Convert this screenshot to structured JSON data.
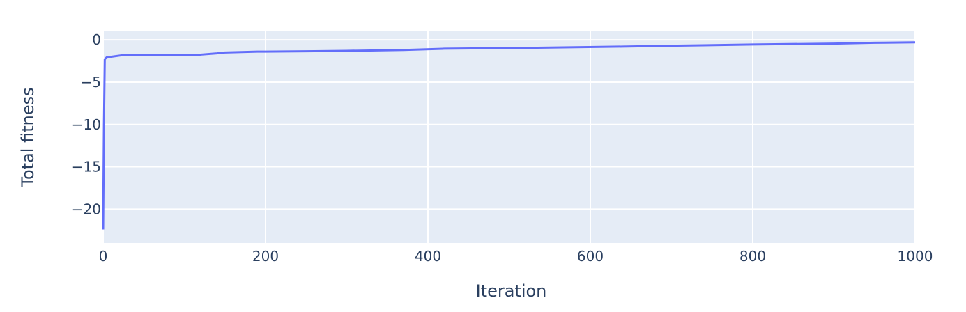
{
  "chart_data": {
    "type": "line",
    "title": "",
    "xlabel": "Iteration",
    "ylabel": "Total fitness",
    "xlim": [
      0,
      1000
    ],
    "ylim": [
      -24,
      1
    ],
    "xticks": [
      0,
      200,
      400,
      600,
      800,
      1000
    ],
    "xtick_labels": [
      "0",
      "200",
      "400",
      "600",
      "800",
      "1000"
    ],
    "yticks": [
      0,
      -5,
      -10,
      -15,
      -20
    ],
    "ytick_labels": [
      "0",
      "−5",
      "−10",
      "−15",
      "−20"
    ],
    "grid": true,
    "legend": "none",
    "series": [
      {
        "color": "#636efa",
        "x": [
          0,
          1,
          2,
          5,
          10,
          25,
          60,
          100,
          120,
          140,
          150,
          190,
          250,
          300,
          370,
          420,
          520,
          640,
          700,
          800,
          900,
          950,
          1000
        ],
        "y": [
          -22.4,
          -10.0,
          -2.3,
          -2.0,
          -2.0,
          -1.8,
          -1.8,
          -1.75,
          -1.75,
          -1.6,
          -1.5,
          -1.4,
          -1.35,
          -1.3,
          -1.2,
          -1.05,
          -0.95,
          -0.8,
          -0.7,
          -0.55,
          -0.45,
          -0.35,
          -0.3
        ]
      }
    ]
  },
  "colors": {
    "plot_bg": "#e5ecf6",
    "grid": "#ffffff",
    "text": "#2a3f5f"
  }
}
